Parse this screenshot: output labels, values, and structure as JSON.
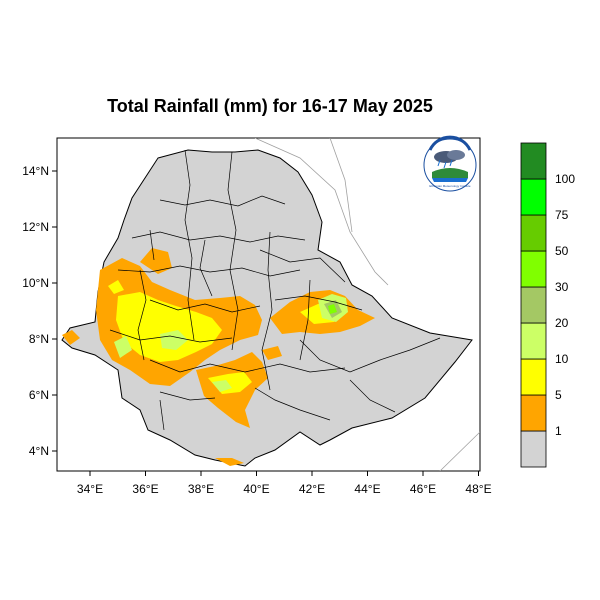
{
  "title": "Total Rainfall (mm) for 16-17 May 2025",
  "x_ticks": [
    "34°E",
    "36°E",
    "38°E",
    "40°E",
    "42°E",
    "44°E",
    "46°E",
    "48°E"
  ],
  "y_ticks": [
    "14°N",
    "12°N",
    "10°N",
    "8°N",
    "6°N",
    "4°N"
  ],
  "legend": {
    "labels": [
      "1",
      "5",
      "10",
      "20",
      "30",
      "50",
      "75",
      "100"
    ],
    "colors": [
      "#d3d3d3",
      "#ffa500",
      "#ffff00",
      "#ccff66",
      "#a4c864",
      "#80ff00",
      "#66cc00",
      "#00ff00",
      "#228b22"
    ]
  },
  "logo": {
    "text": "Ethiopian Meteorology Institute"
  },
  "map": {
    "region": "Ethiopia",
    "lon_range": [
      33,
      48.2
    ],
    "lat_range": [
      3.2,
      15
    ]
  }
}
